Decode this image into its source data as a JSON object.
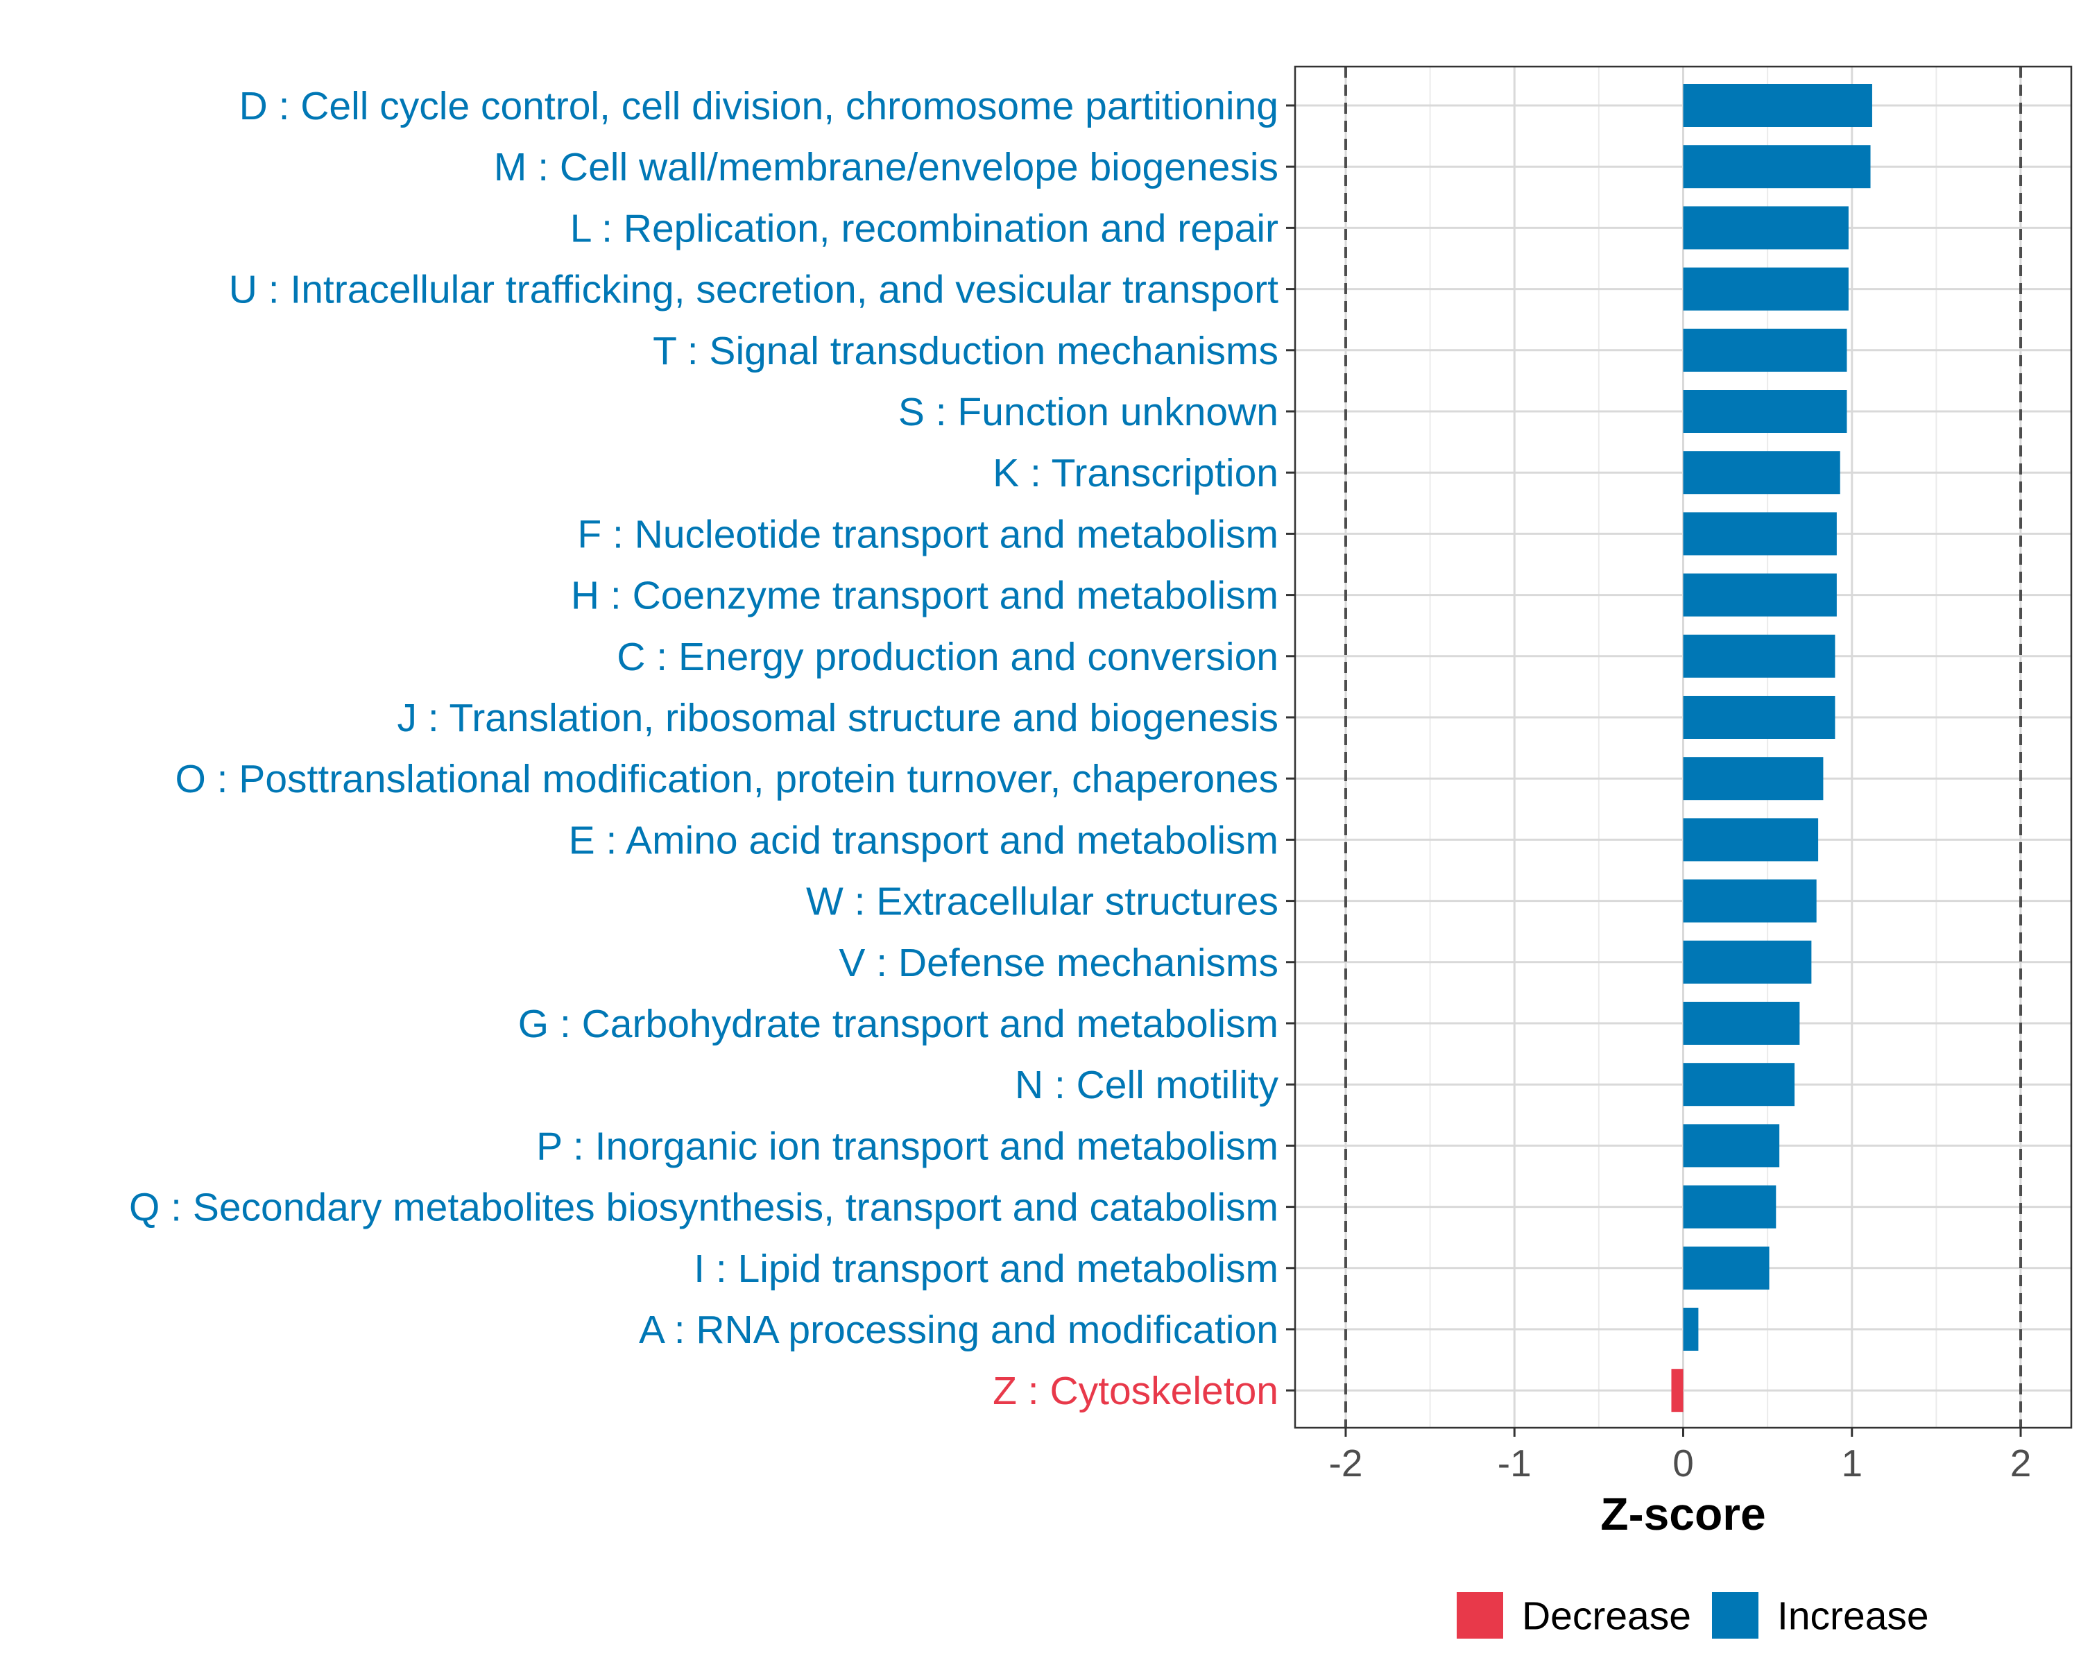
{
  "chart_data": {
    "type": "bar",
    "orientation": "horizontal",
    "title": "",
    "xlabel": "Z-score",
    "ylabel": "",
    "xlim": [
      -2.3,
      2.3
    ],
    "xticks": [
      -2,
      -1,
      0,
      1,
      2
    ],
    "xtick_labels": [
      "-2",
      "-1",
      "0",
      "1",
      "2"
    ],
    "reference_lines": [
      -2,
      2
    ],
    "grid": true,
    "categories": [
      "D : Cell cycle control, cell division, chromosome partitioning",
      "M : Cell wall/membrane/envelope biogenesis",
      "L : Replication, recombination and repair",
      "U : Intracellular trafficking, secretion, and vesicular transport",
      "T : Signal transduction mechanisms",
      "S : Function unknown",
      "K : Transcription",
      "F : Nucleotide transport and metabolism",
      "H : Coenzyme transport and metabolism",
      "C : Energy production and conversion",
      "J : Translation, ribosomal structure and biogenesis",
      "O : Posttranslational modification, protein turnover, chaperones",
      "E : Amino acid transport and metabolism",
      "W : Extracellular structures",
      "V : Defense mechanisms",
      "G : Carbohydrate transport and metabolism",
      "N : Cell motility",
      "P : Inorganic ion transport and metabolism",
      "Q : Secondary metabolites biosynthesis, transport and catabolism",
      "I : Lipid transport and metabolism",
      "A : RNA processing and modification",
      "Z : Cytoskeleton"
    ],
    "values": [
      1.12,
      1.11,
      0.98,
      0.98,
      0.97,
      0.97,
      0.93,
      0.91,
      0.91,
      0.9,
      0.9,
      0.83,
      0.8,
      0.79,
      0.76,
      0.69,
      0.66,
      0.57,
      0.55,
      0.51,
      0.09,
      -0.07
    ],
    "groups": [
      "Increase",
      "Increase",
      "Increase",
      "Increase",
      "Increase",
      "Increase",
      "Increase",
      "Increase",
      "Increase",
      "Increase",
      "Increase",
      "Increase",
      "Increase",
      "Increase",
      "Increase",
      "Increase",
      "Increase",
      "Increase",
      "Increase",
      "Increase",
      "Increase",
      "Decrease"
    ],
    "legend": {
      "position": "bottom",
      "entries": [
        {
          "label": "Decrease",
          "color": "#e8394a"
        },
        {
          "label": "Increase",
          "color": "#0077b5"
        }
      ]
    },
    "colors": {
      "Decrease": "#e8394a",
      "Increase": "#0077b5"
    }
  }
}
